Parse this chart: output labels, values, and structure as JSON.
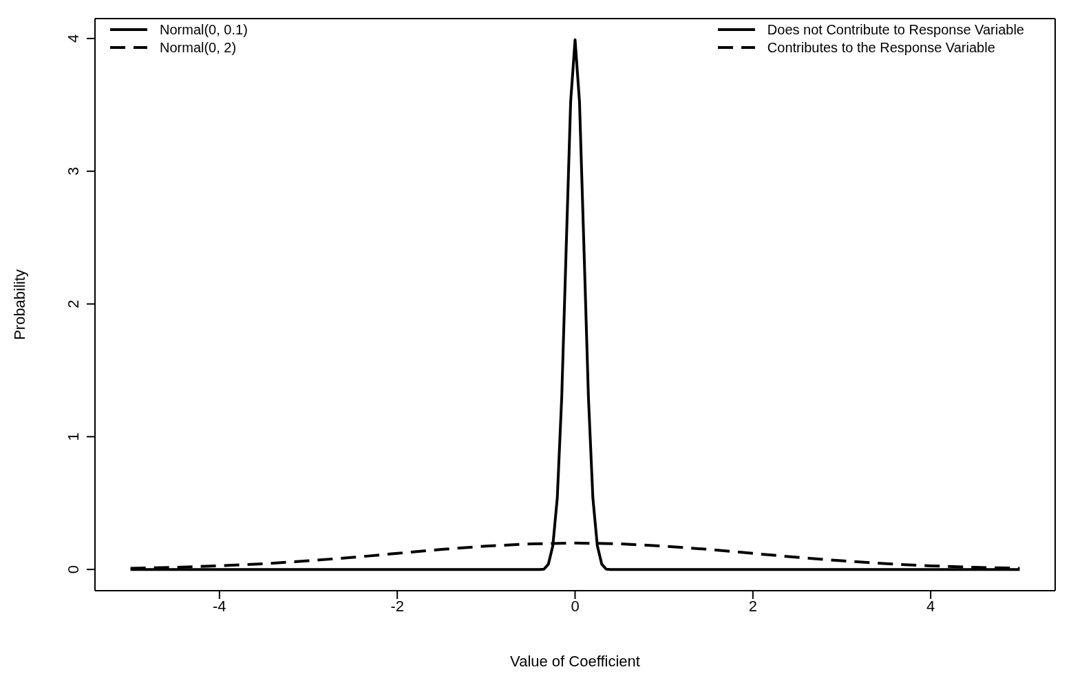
{
  "chart_data": {
    "type": "line",
    "xlabel": "Value of Coefficient",
    "ylabel": "Probability",
    "xlim": [
      -5.4,
      5.4
    ],
    "ylim": [
      -0.16,
      4.15
    ],
    "xticks": [
      -4,
      -2,
      0,
      2,
      4
    ],
    "yticks": [
      0,
      1,
      2,
      3,
      4
    ],
    "legend": "top left",
    "marker": "none",
    "annotations": [
      "Does not Contribute to Response Variable",
      "Contributes to the Response Variable"
    ],
    "series": [
      {
        "name": "Normal(0, 0.1)",
        "color": "#000000",
        "line_style": "solid",
        "x": [
          -5,
          -0.4,
          -0.35,
          -0.3,
          -0.25,
          -0.2,
          -0.15,
          -0.1,
          -0.05,
          0,
          0.05,
          0.1,
          0.15,
          0.2,
          0.25,
          0.3,
          0.35,
          0.4,
          5
        ],
        "values": [
          0,
          0,
          0.002,
          0.04,
          0.18,
          0.54,
          1.3,
          2.42,
          3.52,
          3.99,
          3.52,
          2.42,
          1.3,
          0.54,
          0.18,
          0.04,
          0.002,
          0,
          0
        ]
      },
      {
        "name": "Normal(0, 2)",
        "color": "#000000",
        "line_style": "dashed",
        "x": [
          -5,
          -4.5,
          -4,
          -3.5,
          -3,
          -2.5,
          -2,
          -1.5,
          -1,
          -0.5,
          0,
          0.5,
          1,
          1.5,
          2,
          2.5,
          3,
          3.5,
          4,
          4.5,
          5
        ],
        "values": [
          0.009,
          0.016,
          0.027,
          0.043,
          0.065,
          0.091,
          0.121,
          0.151,
          0.176,
          0.193,
          0.199,
          0.193,
          0.176,
          0.151,
          0.121,
          0.091,
          0.065,
          0.043,
          0.027,
          0.016,
          0.009
        ]
      }
    ]
  }
}
